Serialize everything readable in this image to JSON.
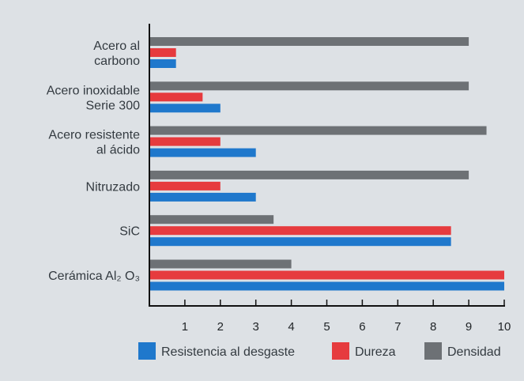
{
  "chart_data": {
    "type": "bar",
    "orientation": "horizontal",
    "categories": [
      {
        "lines": [
          "Acero al",
          "carbono"
        ]
      },
      {
        "lines": [
          "Acero inoxidable",
          "Serie 300"
        ]
      },
      {
        "lines": [
          "Acero resistente",
          "al ácido"
        ]
      },
      {
        "lines": [
          "Nitruzado"
        ]
      },
      {
        "lines": [
          "SiC"
        ]
      },
      {
        "lines": [
          "Cerámica Al₂ O₃"
        ]
      }
    ],
    "series": [
      {
        "name": "Densidad",
        "color": "#6d7175",
        "values": [
          9,
          9,
          9.5,
          9,
          3.5,
          4
        ]
      },
      {
        "name": "Dureza",
        "color": "#e63b3e",
        "values": [
          0.75,
          1.5,
          2,
          2,
          8.5,
          10
        ]
      },
      {
        "name": "Resistencia al desgaste",
        "color": "#1f78cc",
        "values": [
          0.75,
          2,
          3,
          3,
          8.5,
          10
        ]
      }
    ],
    "xlim": [
      0,
      10
    ],
    "xticks": [
      "1",
      "2",
      "3",
      "4",
      "5",
      "6",
      "7",
      "8",
      "9",
      "10"
    ],
    "legend": {
      "placement": "bottom",
      "entries": [
        {
          "label": "Resistencia al desgaste",
          "color": "#1f78cc"
        },
        {
          "label": "Dureza",
          "color": "#e63b3e"
        },
        {
          "label": "Densidad",
          "color": "#6d7175"
        }
      ]
    },
    "grid": false
  }
}
